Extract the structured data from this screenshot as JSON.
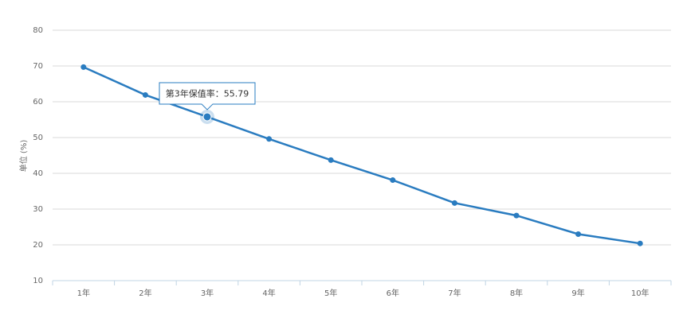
{
  "chart_data": {
    "type": "line",
    "y_label": "单位 (%)",
    "categories": [
      "1年",
      "2年",
      "3年",
      "4年",
      "5年",
      "6年",
      "7年",
      "8年",
      "9年",
      "10年"
    ],
    "values": [
      69.7,
      61.9,
      55.79,
      49.6,
      43.7,
      38.1,
      31.7,
      28.2,
      23.0,
      20.4
    ],
    "color": "#2a7cc0",
    "ylim": [
      10,
      80
    ],
    "yticks": [
      10,
      20,
      30,
      40,
      50,
      60,
      70,
      80
    ],
    "grid": true,
    "tooltip": "第3年保值率：55.79"
  }
}
